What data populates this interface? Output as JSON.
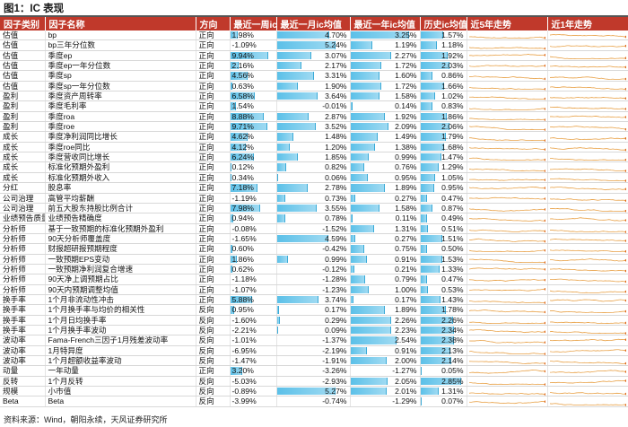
{
  "figure_title": "图1：IC 表现",
  "source": "资料来源：Wind，朝阳永续，天风证券研究所",
  "headers": [
    "因子类别",
    "因子名称",
    "方向",
    "最近一周ic",
    "最近一月ic均值",
    "最近一年ic均值",
    "历史ic均值",
    "近5年走势",
    "近1年走势"
  ],
  "colors": {
    "header_bg": "#c0392b",
    "bar": "#5bc0e8",
    "spark_line": "#e8a045",
    "spark_dot": "#e06a1e"
  },
  "rows": [
    {
      "cat": "估值",
      "name": "bp",
      "dir": "正向",
      "w": "1.98%",
      "m": "4.70%",
      "y": "3.25%",
      "h": "1.57%"
    },
    {
      "cat": "估值",
      "name": "bp三年分位数",
      "dir": "正向",
      "w": "-1.09%",
      "m": "5.24%",
      "y": "1.19%",
      "h": "1.18%"
    },
    {
      "cat": "估值",
      "name": "季度ep",
      "dir": "正向",
      "w": "9.94%",
      "m": "3.07%",
      "y": "2.27%",
      "h": "1.92%"
    },
    {
      "cat": "估值",
      "name": "季度ep一年分位数",
      "dir": "正向",
      "w": "2.16%",
      "m": "2.17%",
      "y": "1.72%",
      "h": "2.03%"
    },
    {
      "cat": "估值",
      "name": "季度sp",
      "dir": "正向",
      "w": "4.56%",
      "m": "3.31%",
      "y": "1.60%",
      "h": "0.86%"
    },
    {
      "cat": "估值",
      "name": "季度sp一年分位数",
      "dir": "正向",
      "w": "0.63%",
      "m": "1.90%",
      "y": "1.72%",
      "h": "1.66%"
    },
    {
      "cat": "盈利",
      "name": "季度资产周转率",
      "dir": "正向",
      "w": "6.58%",
      "m": "3.64%",
      "y": "1.58%",
      "h": "1.02%"
    },
    {
      "cat": "盈利",
      "name": "季度毛利率",
      "dir": "正向",
      "w": "1.54%",
      "m": "-0.01%",
      "y": "0.14%",
      "h": "0.83%"
    },
    {
      "cat": "盈利",
      "name": "季度roa",
      "dir": "正向",
      "w": "8.88%",
      "m": "2.87%",
      "y": "1.92%",
      "h": "1.86%"
    },
    {
      "cat": "盈利",
      "name": "季度roe",
      "dir": "正向",
      "w": "9.71%",
      "m": "3.52%",
      "y": "2.09%",
      "h": "2.06%"
    },
    {
      "cat": "成长",
      "name": "季度净利润同比增长",
      "dir": "正向",
      "w": "4.62%",
      "m": "1.48%",
      "y": "1.49%",
      "h": "1.79%"
    },
    {
      "cat": "成长",
      "name": "季度roe同比",
      "dir": "正向",
      "w": "4.12%",
      "m": "1.20%",
      "y": "1.38%",
      "h": "1.68%"
    },
    {
      "cat": "成长",
      "name": "季度营收同比增长",
      "dir": "正向",
      "w": "6.24%",
      "m": "1.85%",
      "y": "0.99%",
      "h": "1.47%"
    },
    {
      "cat": "成长",
      "name": "标准化预期外盈利",
      "dir": "正向",
      "w": "0.12%",
      "m": "0.82%",
      "y": "0.76%",
      "h": "1.29%"
    },
    {
      "cat": "成长",
      "name": "标准化预期外收入",
      "dir": "正向",
      "w": "0.34%",
      "m": "0.06%",
      "y": "0.95%",
      "h": "1.05%"
    },
    {
      "cat": "分红",
      "name": "股息率",
      "dir": "正向",
      "w": "7.18%",
      "m": "2.78%",
      "y": "1.89%",
      "h": "0.95%"
    },
    {
      "cat": "公司治理",
      "name": "高管平均薪酬",
      "dir": "正向",
      "w": "-1.19%",
      "m": "0.73%",
      "y": "0.27%",
      "h": "0.47%"
    },
    {
      "cat": "公司治理",
      "name": "前五大股东持股比例合计",
      "dir": "正向",
      "w": "7.98%",
      "m": "3.55%",
      "y": "1.58%",
      "h": "0.87%"
    },
    {
      "cat": "业绩预告质量",
      "name": "业绩预告精确度",
      "dir": "正向",
      "w": "0.94%",
      "m": "0.78%",
      "y": "0.11%",
      "h": "0.49%"
    },
    {
      "cat": "分析师",
      "name": "基于一致预期的标准化预期外盈利",
      "dir": "正向",
      "w": "-0.08%",
      "m": "-1.52%",
      "y": "1.31%",
      "h": "0.51%"
    },
    {
      "cat": "分析师",
      "name": "90天分析师覆盖度",
      "dir": "正向",
      "w": "-1.65%",
      "m": "4.59%",
      "y": "0.27%",
      "h": "1.51%"
    },
    {
      "cat": "分析师",
      "name": "财报超研报预期程度",
      "dir": "正向",
      "w": "0.60%",
      "m": "-0.42%",
      "y": "0.75%",
      "h": "0.50%"
    },
    {
      "cat": "分析师",
      "name": "一致预期EPS变动",
      "dir": "正向",
      "w": "1.86%",
      "m": "0.99%",
      "y": "0.91%",
      "h": "1.53%"
    },
    {
      "cat": "分析师",
      "name": "一致预期净利润复合增速",
      "dir": "正向",
      "w": "0.62%",
      "m": "-0.12%",
      "y": "0.21%",
      "h": "1.33%"
    },
    {
      "cat": "分析师",
      "name": "90天净上调预期占比",
      "dir": "正向",
      "w": "-1.18%",
      "m": "-1.28%",
      "y": "0.79%",
      "h": "0.47%"
    },
    {
      "cat": "分析师",
      "name": "90天内预期调整均值",
      "dir": "正向",
      "w": "-1.07%",
      "m": "-1.23%",
      "y": "1.00%",
      "h": "0.53%"
    },
    {
      "cat": "换手率",
      "name": "1个月非流动性冲击",
      "dir": "正向",
      "w": "5.88%",
      "m": "3.74%",
      "y": "0.17%",
      "h": "1.43%"
    },
    {
      "cat": "换手率",
      "name": "1个月换手率与均价的相关性",
      "dir": "反向",
      "w": "0.95%",
      "m": "0.17%",
      "y": "1.89%",
      "h": "1.78%"
    },
    {
      "cat": "换手率",
      "name": "1个月日均换手率",
      "dir": "反向",
      "w": "-1.60%",
      "m": "0.29%",
      "y": "2.26%",
      "h": "2.26%"
    },
    {
      "cat": "换手率",
      "name": "1个月换手率波动",
      "dir": "反向",
      "w": "-2.21%",
      "m": "0.09%",
      "y": "2.23%",
      "h": "2.34%"
    },
    {
      "cat": "波动率",
      "name": "Fama-French三因子1月残差波动率",
      "dir": "反向",
      "w": "-1.01%",
      "m": "-1.37%",
      "y": "2.54%",
      "h": "2.38%"
    },
    {
      "cat": "波动率",
      "name": "1月特异度",
      "dir": "反向",
      "w": "-6.95%",
      "m": "-2.19%",
      "y": "0.91%",
      "h": "2.13%"
    },
    {
      "cat": "波动率",
      "name": "1个月超额收益率波动",
      "dir": "反向",
      "w": "-1.47%",
      "m": "-1.91%",
      "y": "2.00%",
      "h": "2.14%"
    },
    {
      "cat": "动量",
      "name": "一年动量",
      "dir": "正向",
      "w": "3.20%",
      "m": "-3.26%",
      "y": "-1.27%",
      "h": "0.05%"
    },
    {
      "cat": "反转",
      "name": "1个月反转",
      "dir": "反向",
      "w": "-5.03%",
      "m": "-2.93%",
      "y": "2.05%",
      "h": "2.85%"
    },
    {
      "cat": "规模",
      "name": "小市值",
      "dir": "反向",
      "w": "-0.89%",
      "m": "5.27%",
      "y": "2.01%",
      "h": "1.31%"
    },
    {
      "cat": "Beta",
      "name": "Beta",
      "dir": "反向",
      "w": "-3.99%",
      "m": "-0.74%",
      "y": "-1.29%",
      "h": "0.07%"
    }
  ]
}
